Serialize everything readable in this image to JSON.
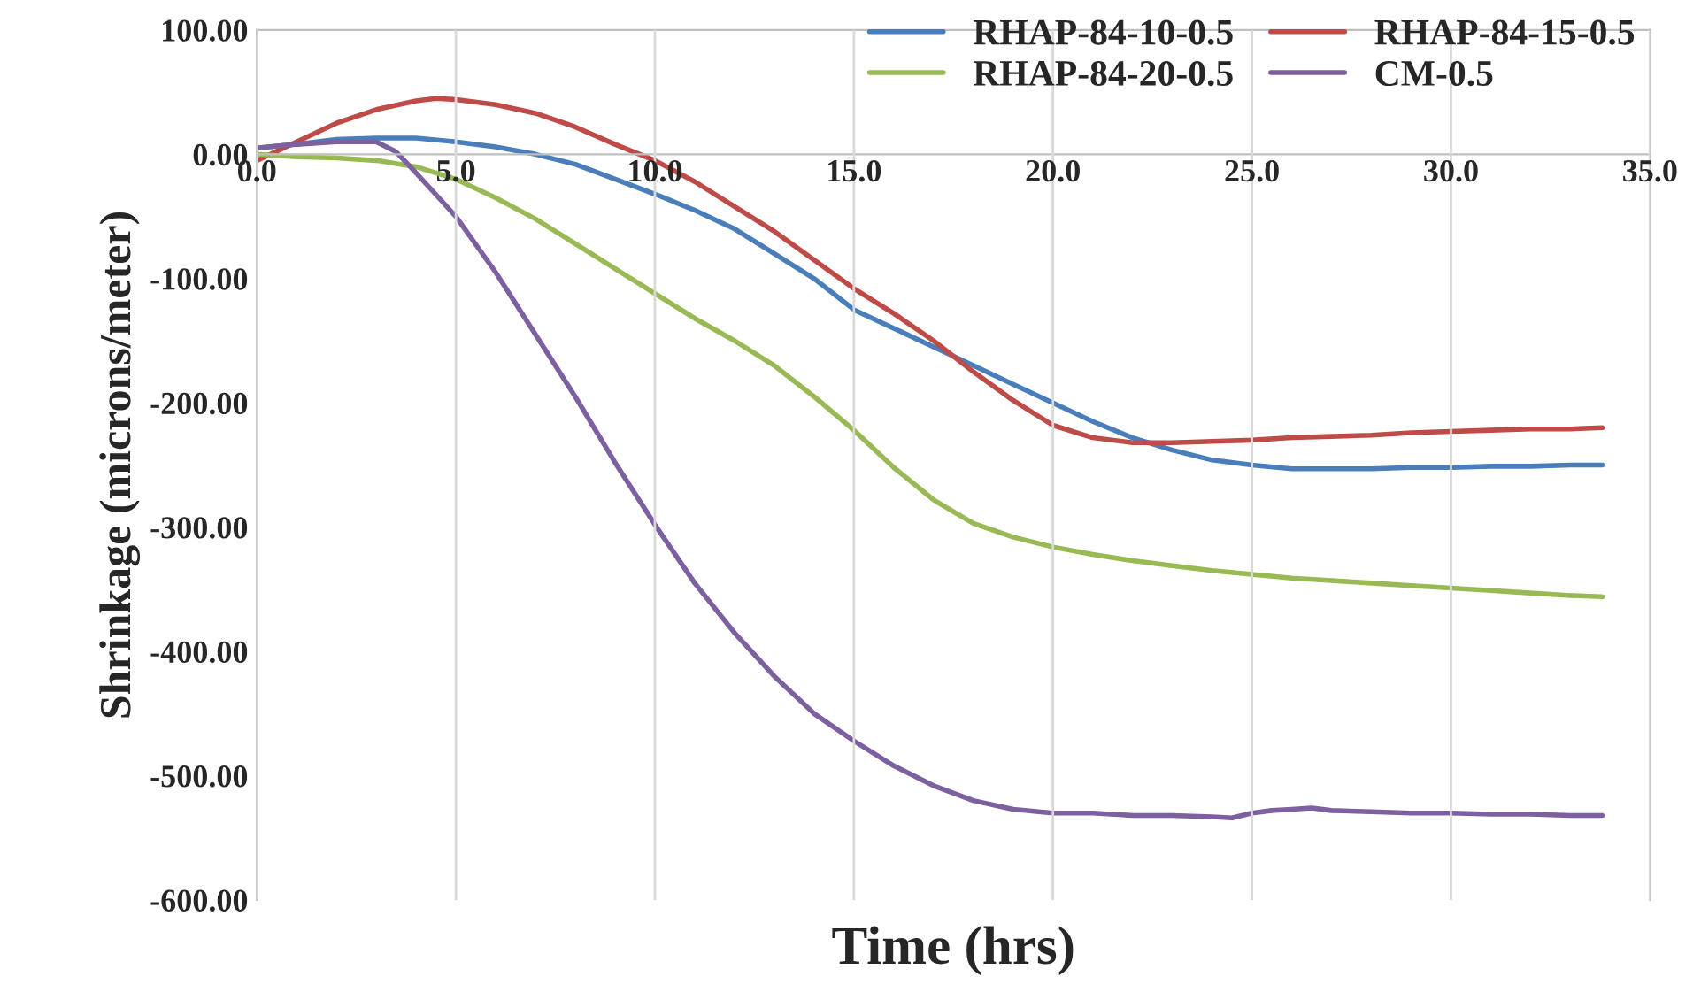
{
  "chart_data": {
    "type": "line",
    "xlabel": "Time (hrs)",
    "ylabel": "Shrinkage (microns/meter)",
    "xlim": [
      0,
      35
    ],
    "xticks": [
      {
        "value": 0,
        "label": "0.0"
      },
      {
        "value": 5,
        "label": "5.0"
      },
      {
        "value": 10,
        "label": "10.0"
      },
      {
        "value": 15,
        "label": "15.0"
      },
      {
        "value": 20,
        "label": "20.0"
      },
      {
        "value": 25,
        "label": "25.0"
      },
      {
        "value": 30,
        "label": "30.0"
      },
      {
        "value": 35,
        "label": "35.0"
      }
    ],
    "ylim": [
      -600,
      100
    ],
    "yticks": [
      {
        "value": -600,
        "label": "-600.00"
      },
      {
        "value": -500,
        "label": "-500.00"
      },
      {
        "value": -400,
        "label": "-400.00"
      },
      {
        "value": -300,
        "label": "-300.00"
      },
      {
        "value": -200,
        "label": "-200.00"
      },
      {
        "value": -100,
        "label": "-100.00"
      },
      {
        "value": 0,
        "label": "0.00"
      },
      {
        "value": 100,
        "label": "100.00"
      }
    ],
    "grid": "x",
    "legend": "top right",
    "marker": "none",
    "line_style": "solid",
    "series": [
      {
        "name": "RHAP-84-10-0.5",
        "color": "#4a7ebb",
        "x": [
          0,
          1,
          2,
          3,
          4,
          5,
          6,
          7,
          8,
          9,
          10,
          11,
          12,
          13,
          14,
          15,
          16,
          17,
          18,
          19,
          20,
          21,
          22,
          23,
          24,
          25,
          26,
          27,
          28,
          29,
          30,
          31,
          32,
          33,
          33.8
        ],
        "values": [
          5,
          8,
          12,
          13,
          13,
          10,
          6,
          0,
          -8,
          -20,
          -32,
          -45,
          -60,
          -80,
          -100,
          -125,
          -140,
          -155,
          -170,
          -185,
          -200,
          -215,
          -228,
          -238,
          -246,
          -250,
          -253,
          -253,
          -253,
          -252,
          -252,
          -251,
          -251,
          -250,
          -250
        ]
      },
      {
        "name": "RHAP-84-15-0.5",
        "color": "#be4b48",
        "x": [
          0,
          1,
          2,
          3,
          4,
          4.5,
          5,
          6,
          7,
          8,
          9,
          10,
          11,
          12,
          13,
          14,
          15,
          16,
          17,
          18,
          19,
          20,
          21,
          22,
          23,
          24,
          25,
          26,
          27,
          28,
          29,
          30,
          31,
          32,
          33,
          33.8
        ],
        "values": [
          -5,
          10,
          25,
          36,
          43,
          45,
          44,
          40,
          33,
          22,
          8,
          -5,
          -22,
          -42,
          -62,
          -85,
          -108,
          -128,
          -150,
          -175,
          -198,
          -218,
          -228,
          -232,
          -232,
          -231,
          -230,
          -228,
          -227,
          -226,
          -224,
          -223,
          -222,
          -221,
          -221,
          -220
        ]
      },
      {
        "name": "RHAP-84-20-0.5",
        "color": "#98b954",
        "x": [
          0,
          1,
          2,
          3,
          4,
          5,
          6,
          7,
          8,
          9,
          10,
          11,
          12,
          13,
          14,
          15,
          16,
          17,
          18,
          19,
          20,
          21,
          22,
          23,
          24,
          25,
          26,
          27,
          28,
          29,
          30,
          31,
          32,
          33,
          33.8
        ],
        "values": [
          0,
          -2,
          -3,
          -5,
          -10,
          -20,
          -35,
          -52,
          -72,
          -92,
          -112,
          -132,
          -150,
          -170,
          -195,
          -222,
          -252,
          -278,
          -297,
          -308,
          -316,
          -322,
          -327,
          -331,
          -335,
          -338,
          -341,
          -343,
          -345,
          -347,
          -349,
          -351,
          -353,
          -355,
          -356
        ]
      },
      {
        "name": "CM-0.5",
        "color": "#7d60a0",
        "x": [
          0,
          1,
          2,
          3,
          3.5,
          4,
          5,
          6,
          7,
          8,
          9,
          10,
          11,
          12,
          13,
          14,
          15,
          16,
          17,
          18,
          19,
          20,
          21,
          22,
          23,
          24,
          24.5,
          25,
          25.5,
          26,
          26.5,
          27,
          28,
          29,
          30,
          31,
          32,
          33,
          33.8
        ],
        "values": [
          5,
          8,
          10,
          10,
          2,
          -15,
          -50,
          -95,
          -145,
          -195,
          -248,
          -298,
          -345,
          -385,
          -420,
          -450,
          -472,
          -492,
          -508,
          -520,
          -527,
          -530,
          -530,
          -532,
          -532,
          -533,
          -534,
          -530,
          -528,
          -527,
          -526,
          -528,
          -529,
          -530,
          -530,
          -531,
          -531,
          -532,
          -532
        ]
      }
    ]
  }
}
